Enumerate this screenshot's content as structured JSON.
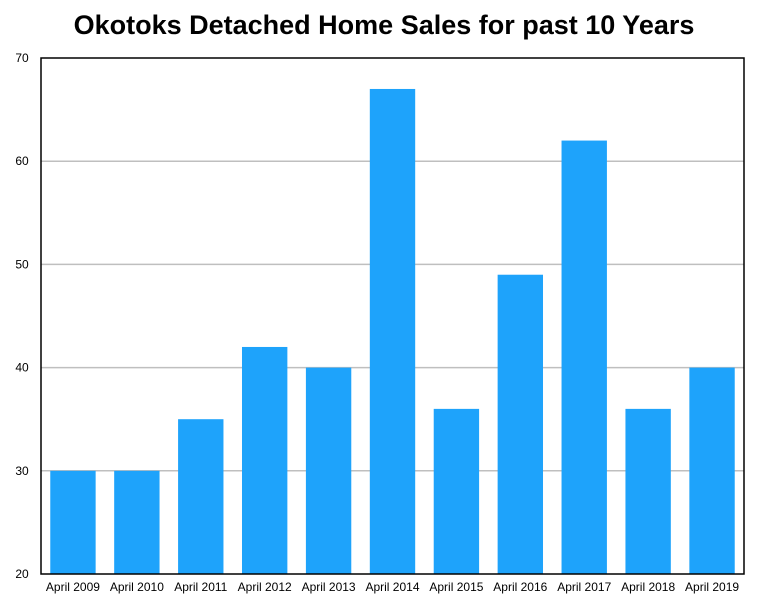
{
  "chart_data": {
    "type": "bar",
    "title": "Okotoks Detached Home Sales for past 10 Years",
    "xlabel": "",
    "ylabel": "",
    "categories": [
      "April 2009",
      "April 2010",
      "April 2011",
      "April 2012",
      "April 2013",
      "April 2014",
      "April 2015",
      "April 2016",
      "April 2017",
      "April 2018",
      "April 2019"
    ],
    "values": [
      30,
      30,
      35,
      42,
      40,
      67,
      36,
      49,
      62,
      36,
      40
    ],
    "ylim": [
      20,
      70
    ],
    "yticks": [
      "20",
      "30",
      "40",
      "50",
      "60",
      "70"
    ],
    "grid": true,
    "legend": "none",
    "bar_color": "#1ea3fb",
    "grid_color": "#bfbfbf"
  }
}
